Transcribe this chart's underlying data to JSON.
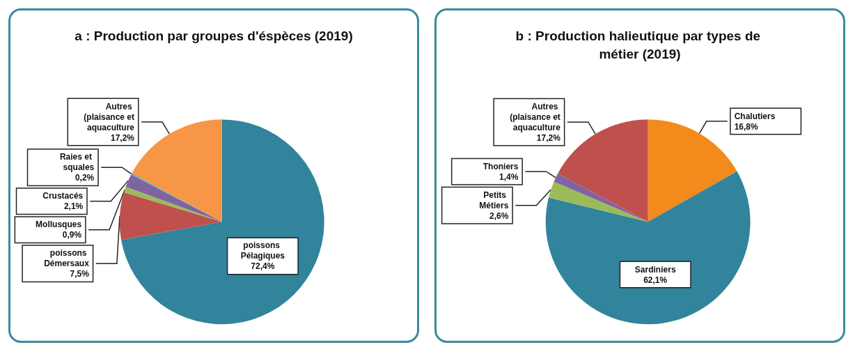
{
  "chart_data": [
    {
      "type": "pie",
      "title": "a : Production par groupes d'éspèces (2019)",
      "categories": [
        "poissons Pélagiques",
        "poissons Démersaux",
        "Mollusques",
        "Crustacés",
        "Raies et squales",
        "Autres (plaisance et aquaculture"
      ],
      "values": [
        72.4,
        7.5,
        0.9,
        2.1,
        0.2,
        17.2
      ],
      "value_labels": [
        "72,4%",
        "7,5%",
        "0,9%",
        "2,1%",
        "0,2%",
        "17,2%"
      ],
      "colors": [
        "#31849b",
        "#c0504d",
        "#9bbb59",
        "#8064a2",
        "#4bacc6",
        "#f79646"
      ],
      "legend": false
    },
    {
      "type": "pie",
      "title": "b : Production halieutique par types de métier (2019)",
      "categories": [
        "Chalutiers",
        "Sardiniers",
        "Petits Métiers",
        "Thoniers",
        "Autres (plaisance et aquaculture"
      ],
      "values": [
        16.8,
        62.1,
        2.6,
        1.4,
        17.2
      ],
      "value_labels": [
        "16,8%",
        "62,1%",
        "2,6%",
        "1,4%",
        "17,2%"
      ],
      "colors": [
        "#f38a1c",
        "#31849b",
        "#9bbb59",
        "#8064a2",
        "#c0504d"
      ],
      "legend": false
    }
  ]
}
